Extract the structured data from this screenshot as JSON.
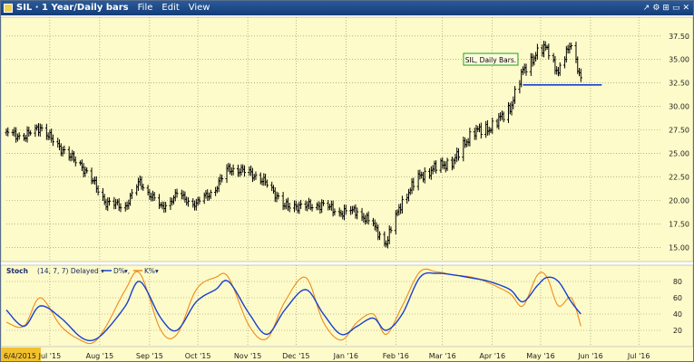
{
  "window": {
    "title": "SIL · 1 Year/Daily bars",
    "menu": [
      "File",
      "Edit",
      "View"
    ],
    "controls": [
      "↗",
      "⚙",
      "⊞",
      "▭",
      "✕"
    ]
  },
  "chart_data": [
    {
      "type": "bar",
      "subtype": "ohlc",
      "title": "SIL, Daily Bars.",
      "ylim": [
        13.5,
        39.5
      ],
      "yticks": [
        "37.50",
        "35.00",
        "32.50",
        "30.00",
        "27.50",
        "25.00",
        "22.50",
        "20.00",
        "17.50",
        "15.00"
      ],
      "horizontal_line": {
        "y": 32.3,
        "x_start": "2016-04-20",
        "x_end": "2016-06-08",
        "color": "#1a3fd0"
      },
      "series": [
        {
          "color": "#000000",
          "x": [
            "2015-06-04",
            "2015-06-15",
            "2015-06-25",
            "2015-07-08",
            "2015-07-20",
            "2015-07-28",
            "2015-08-05",
            "2015-08-17",
            "2015-08-26",
            "2015-09-08",
            "2015-09-18",
            "2015-09-30",
            "2015-10-12",
            "2015-10-20",
            "2015-11-02",
            "2015-11-13",
            "2015-11-24",
            "2015-12-07",
            "2015-12-18",
            "2015-12-29",
            "2016-01-08",
            "2016-01-18",
            "2016-01-26",
            "2016-02-05",
            "2016-02-16",
            "2016-02-26",
            "2016-03-08",
            "2016-03-20",
            "2016-03-30",
            "2016-04-12",
            "2016-04-20",
            "2016-04-29",
            "2016-05-05",
            "2016-05-12",
            "2016-05-20",
            "2016-05-26"
          ],
          "values": [
            27.2,
            26.8,
            27.8,
            25.5,
            23.8,
            22.0,
            19.7,
            19.4,
            22.0,
            19.2,
            20.6,
            19.6,
            21.3,
            23.4,
            23.0,
            21.8,
            19.4,
            19.4,
            19.5,
            18.7,
            18.9,
            17.3,
            15.5,
            20.0,
            22.6,
            23.5,
            24.2,
            27.4,
            27.6,
            29.8,
            33.8,
            35.7,
            36.3,
            33.5,
            36.9,
            32.9
          ]
        }
      ]
    },
    {
      "type": "line",
      "title": "Stoch",
      "legend_text": "(14, 7, 7) Delayed ▾",
      "ylim": [
        0,
        100
      ],
      "yticks": [
        "80",
        "60",
        "40",
        "20"
      ],
      "series": [
        {
          "name": "D%",
          "color": "#1a3fd0",
          "x": [
            "2015-06-04",
            "2015-06-15",
            "2015-06-25",
            "2015-07-08",
            "2015-07-20",
            "2015-07-28",
            "2015-08-05",
            "2015-08-17",
            "2015-08-26",
            "2015-09-08",
            "2015-09-18",
            "2015-09-30",
            "2015-10-12",
            "2015-10-20",
            "2015-11-02",
            "2015-11-13",
            "2015-11-24",
            "2015-12-07",
            "2015-12-18",
            "2015-12-29",
            "2016-01-08",
            "2016-01-18",
            "2016-01-26",
            "2016-02-05",
            "2016-02-16",
            "2016-02-26",
            "2016-03-08",
            "2016-03-20",
            "2016-03-30",
            "2016-04-12",
            "2016-04-20",
            "2016-04-29",
            "2016-05-05",
            "2016-05-12",
            "2016-05-20",
            "2016-05-26"
          ],
          "values": [
            45,
            25,
            50,
            35,
            12,
            8,
            20,
            50,
            80,
            35,
            20,
            55,
            70,
            80,
            40,
            15,
            45,
            70,
            40,
            15,
            25,
            35,
            20,
            40,
            85,
            90,
            88,
            84,
            80,
            70,
            55,
            75,
            85,
            80,
            55,
            40
          ]
        },
        {
          "name": "K%",
          "color": "#f08a1a",
          "x": [
            "2015-06-04",
            "2015-06-15",
            "2015-06-25",
            "2015-07-08",
            "2015-07-20",
            "2015-07-28",
            "2015-08-05",
            "2015-08-17",
            "2015-08-26",
            "2015-09-08",
            "2015-09-18",
            "2015-09-30",
            "2015-10-12",
            "2015-10-20",
            "2015-11-02",
            "2015-11-13",
            "2015-11-24",
            "2015-12-07",
            "2015-12-18",
            "2015-12-29",
            "2016-01-08",
            "2016-01-18",
            "2016-01-26",
            "2016-02-05",
            "2016-02-16",
            "2016-02-26",
            "2016-03-08",
            "2016-03-20",
            "2016-03-30",
            "2016-04-12",
            "2016-04-20",
            "2016-04-29",
            "2016-05-05",
            "2016-05-12",
            "2016-05-20",
            "2016-05-26"
          ],
          "values": [
            30,
            25,
            60,
            25,
            8,
            5,
            25,
            70,
            90,
            20,
            15,
            70,
            85,
            85,
            25,
            10,
            55,
            85,
            30,
            8,
            30,
            40,
            15,
            50,
            92,
            92,
            88,
            85,
            78,
            65,
            50,
            88,
            85,
            50,
            60,
            25
          ]
        }
      ]
    }
  ],
  "x_axis": {
    "start_label": "6/4/2015",
    "ticks": [
      {
        "x": "2015-07-01",
        "label": "Jul '15"
      },
      {
        "x": "2015-08-01",
        "label": "Aug '15"
      },
      {
        "x": "2015-09-01",
        "label": "Sep '15"
      },
      {
        "x": "2015-10-01",
        "label": "Oct '15"
      },
      {
        "x": "2015-11-01",
        "label": "Nov '15"
      },
      {
        "x": "2015-12-01",
        "label": "Dec '15"
      },
      {
        "x": "2016-01-01",
        "label": "Jan '16"
      },
      {
        "x": "2016-02-01",
        "label": "Feb '16"
      },
      {
        "x": "2016-03-01",
        "label": "Mar '16"
      },
      {
        "x": "2016-04-01",
        "label": "Apr '16"
      },
      {
        "x": "2016-05-01",
        "label": "May '16"
      },
      {
        "x": "2016-06-01",
        "label": "Jun '16"
      },
      {
        "x": "2016-07-01",
        "label": "Jul '16"
      }
    ]
  },
  "colors": {
    "panel_bg": "#fdfbc9",
    "grid": "#8a8a6a",
    "titlebar": "#1c4a8a",
    "start_label_bg": "#f2c12e",
    "annotation_border": "#1aa01a"
  }
}
